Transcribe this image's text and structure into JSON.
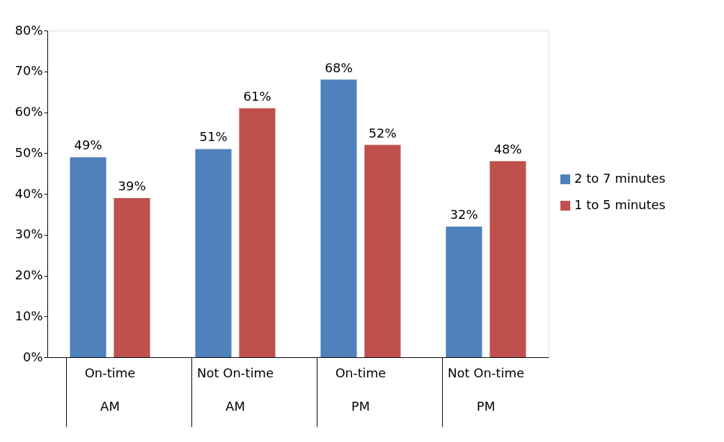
{
  "chart_data": {
    "type": "bar",
    "categories": [
      "On-time\nAM",
      "Not On-time\nAM",
      "On-time\nPM",
      "Not On-time\nPM"
    ],
    "series": [
      {
        "name": "2 to 7 minutes",
        "color": "#4f81bd",
        "values": [
          49,
          51,
          68,
          32
        ],
        "value_labels": [
          "49%",
          "51%",
          "68%",
          "32%"
        ]
      },
      {
        "name": "1 to 5 minutes",
        "color": "#c0504d",
        "values": [
          39,
          61,
          52,
          48
        ],
        "value_labels": [
          "39%",
          "61%",
          "52%",
          "48%"
        ]
      }
    ],
    "ylim": [
      0,
      80
    ],
    "yticks": [
      {
        "value": 0,
        "label": "0%"
      },
      {
        "value": 10,
        "label": "10%"
      },
      {
        "value": 20,
        "label": "20%"
      },
      {
        "value": 30,
        "label": "30%"
      },
      {
        "value": 40,
        "label": "40%"
      },
      {
        "value": 50,
        "label": "50%"
      },
      {
        "value": 60,
        "label": "60%"
      },
      {
        "value": 70,
        "label": "70%"
      },
      {
        "value": 80,
        "label": "80%"
      }
    ],
    "grid": false,
    "legend": "right"
  }
}
